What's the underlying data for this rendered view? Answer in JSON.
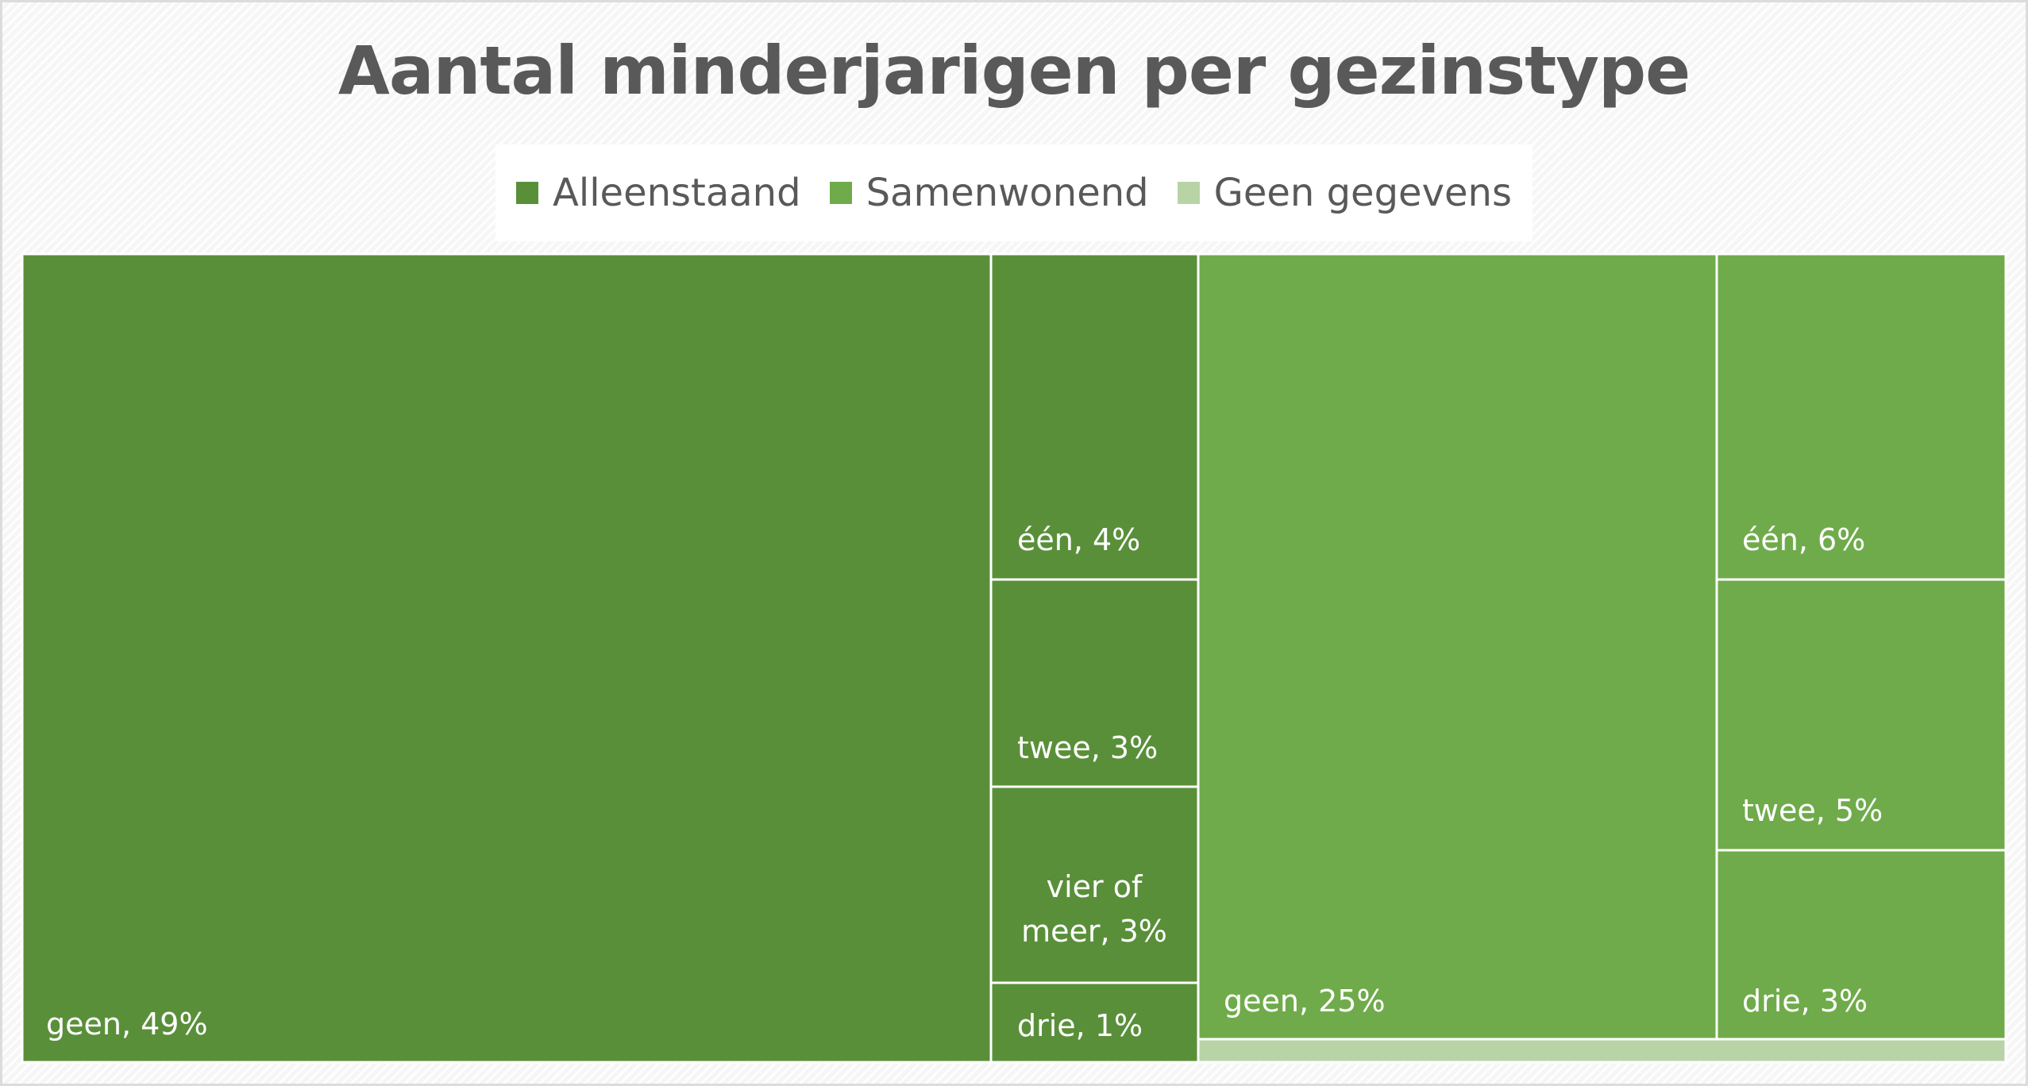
{
  "chart_data": {
    "type": "treemap",
    "title": "Aantal minderjarigen per gezinstype",
    "legend": {
      "position": "top-center",
      "items": [
        {
          "label": "Alleenstaand",
          "color": "#5a8f3a"
        },
        {
          "label": "Samenwonend",
          "color": "#70ab4b"
        },
        {
          "label": "Geen gegevens",
          "color": "#b8d4a7"
        }
      ]
    },
    "series": [
      {
        "name": "Alleenstaand",
        "color": "#5a8f3a",
        "items": [
          {
            "label": "geen",
            "value": 49,
            "text": "geen, 49%"
          },
          {
            "label": "één",
            "value": 4,
            "text": "één, 4%"
          },
          {
            "label": "twee",
            "value": 3,
            "text": "twee, 3%"
          },
          {
            "label": "vier of meer",
            "value": 3,
            "text": "vier of meer, 3%"
          },
          {
            "label": "drie",
            "value": 1,
            "text": "drie, 1%"
          }
        ]
      },
      {
        "name": "Samenwonend",
        "color": "#70ab4b",
        "items": [
          {
            "label": "geen",
            "value": 25,
            "text": "geen, 25%"
          },
          {
            "label": "één",
            "value": 6,
            "text": "één, 6%"
          },
          {
            "label": "twee",
            "value": 5,
            "text": "twee, 5%"
          },
          {
            "label": "drie",
            "value": 3,
            "text": "drie, 3%"
          }
        ]
      },
      {
        "name": "Geen gegevens",
        "color": "#b8d4a7",
        "items": [
          {
            "label": "",
            "value": 1,
            "text": ""
          }
        ]
      }
    ]
  }
}
